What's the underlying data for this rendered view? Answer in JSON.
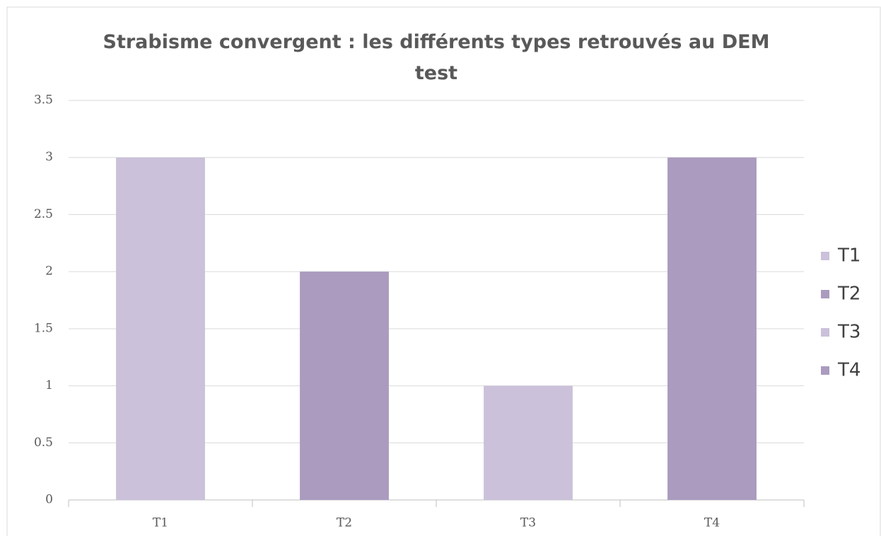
{
  "chart_data": {
    "type": "bar",
    "title": "Strabisme convergent : les différents types retrouvés au DEM test",
    "categories": [
      "T1",
      "T2",
      "T3",
      "T4"
    ],
    "values": [
      3,
      2,
      1,
      3
    ],
    "colors": [
      "#cbc1da",
      "#aa9bbf",
      "#cbc1da",
      "#aa9bbf"
    ],
    "ylim": [
      0,
      3.5
    ],
    "yticks": [
      0,
      0.5,
      1,
      1.5,
      2,
      2.5,
      3,
      3.5
    ],
    "grid": true,
    "legend": "right"
  }
}
